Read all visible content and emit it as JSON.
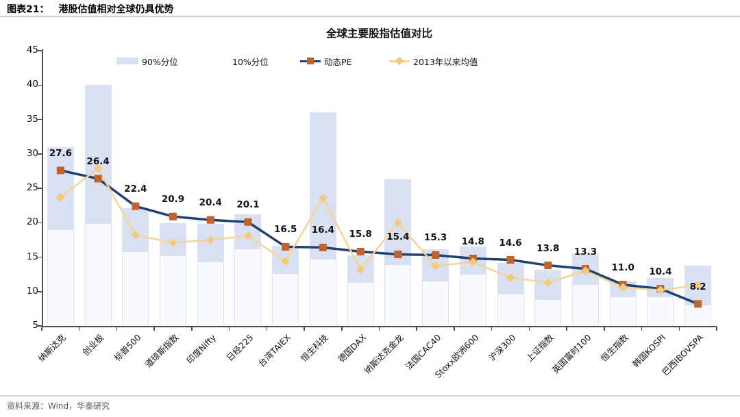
{
  "header": {
    "figure_label": "图表21：",
    "figure_title": "港股估值相对全球仍具优势"
  },
  "footer": {
    "source": "资料来源：Wind，华泰研究"
  },
  "colors": {
    "bar_90pct": "#d9e0f2",
    "bar_10pct_fill": "rgba(222,229,245,0.20)",
    "bar_10pct_edge": "rgba(205,216,238,0.65)",
    "pe_line": "#1f4271",
    "pe_marker": "#c0622c",
    "mean_line": "#f7d494",
    "mean_marker": "#f3c97e",
    "axis": "#4d4d4d",
    "rule": "#c6d4e1",
    "label_text": "#111111"
  },
  "chart_data": {
    "type": "combo-range-bar-and-lines",
    "title": "全球主要股指估值对比",
    "legend": [
      "90%分位",
      "10%分位",
      "动态PE",
      "2013年以来均值"
    ],
    "legend_position": "top",
    "grid": "off",
    "ylim": [
      5,
      45
    ],
    "yticks": [
      5,
      10,
      15,
      20,
      25,
      30,
      35,
      40,
      45
    ],
    "categories": [
      "纳斯达克",
      "创业板",
      "标普500",
      "道琼斯指数",
      "印度Nifty",
      "日经225",
      "台湾TAIEX",
      "恒生科技",
      "德国DAX",
      "纳斯达克金龙",
      "法国CAC40",
      "Stoxx欧洲600",
      "沪深300",
      "上证指数",
      "英国富时100",
      "恒生指数",
      "韩国KOSPI",
      "巴西IBOVSPA"
    ],
    "series": [
      {
        "name": "动态PE",
        "type": "line",
        "marker": "square",
        "data_labels": true,
        "values": [
          27.6,
          26.4,
          22.4,
          20.9,
          20.4,
          20.1,
          16.5,
          16.4,
          15.8,
          15.4,
          15.3,
          14.8,
          14.6,
          13.8,
          13.3,
          11.0,
          10.4,
          8.2
        ]
      },
      {
        "name": "2013年以来均值",
        "type": "line",
        "marker": "diamond",
        "data_labels": false,
        "values": [
          23.7,
          27.9,
          18.2,
          17.1,
          17.5,
          18.1,
          14.4,
          23.6,
          13.2,
          20.0,
          13.7,
          14.3,
          12.0,
          11.3,
          13.0,
          10.6,
          10.2,
          10.9
        ]
      },
      {
        "name": "90%分位",
        "type": "range-bar-upper",
        "values": [
          31.0,
          40.0,
          22.1,
          19.9,
          19.8,
          21.2,
          16.6,
          36.0,
          15.2,
          26.3,
          16.1,
          16.5,
          14.2,
          13.2,
          15.4,
          11.5,
          12.0,
          13.8
        ]
      },
      {
        "name": "10%分位",
        "type": "range-bar-lower",
        "values": [
          18.9,
          19.8,
          15.7,
          15.1,
          14.3,
          16.1,
          12.6,
          14.7,
          11.3,
          13.9,
          11.5,
          12.5,
          9.6,
          8.8,
          11.0,
          9.2,
          9.2,
          8.0
        ]
      }
    ]
  }
}
